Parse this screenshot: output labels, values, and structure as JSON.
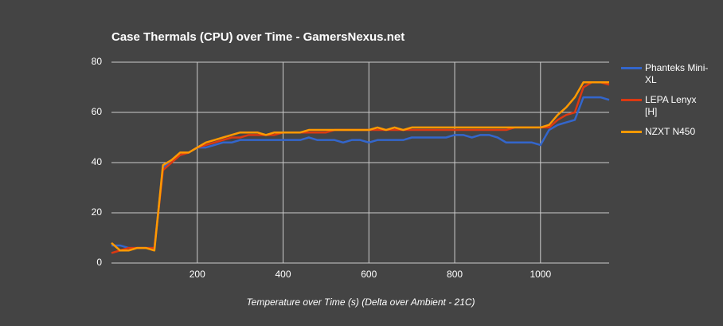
{
  "chart_data": {
    "type": "line",
    "title": "Case Thermals (CPU) over Time - GamersNexus.net",
    "x_label": "Temperature over Time (s) (Delta over Ambient - 21C)",
    "x": [
      0,
      20,
      40,
      60,
      80,
      100,
      120,
      140,
      160,
      180,
      200,
      220,
      240,
      260,
      280,
      300,
      320,
      340,
      360,
      380,
      400,
      420,
      440,
      460,
      480,
      500,
      520,
      540,
      560,
      580,
      600,
      620,
      640,
      660,
      680,
      700,
      720,
      740,
      760,
      780,
      800,
      820,
      840,
      860,
      880,
      900,
      920,
      940,
      960,
      980,
      1000,
      1020,
      1040,
      1060,
      1080,
      1100,
      1120,
      1140,
      1160
    ],
    "series": [
      {
        "name": "Phanteks Mini-XL",
        "color": "#3366cc",
        "values": [
          7,
          7,
          6,
          6,
          6,
          6,
          38,
          41,
          43,
          44,
          46,
          46,
          47,
          48,
          48,
          49,
          49,
          49,
          49,
          49,
          49,
          49,
          49,
          50,
          49,
          49,
          49,
          48,
          49,
          49,
          48,
          49,
          49,
          49,
          49,
          50,
          50,
          50,
          50,
          50,
          51,
          51,
          50,
          51,
          51,
          50,
          48,
          48,
          48,
          48,
          47,
          53,
          55,
          56,
          57,
          66,
          66,
          66,
          65
        ]
      },
      {
        "name": "LEPA Lenyx [H]",
        "color": "#dc3912",
        "values": [
          4,
          5,
          6,
          6,
          6,
          6,
          37,
          40,
          43,
          44,
          46,
          47,
          48,
          49,
          50,
          50,
          51,
          51,
          51,
          51,
          52,
          52,
          52,
          52,
          52,
          52,
          53,
          53,
          53,
          53,
          53,
          53,
          53,
          53,
          53,
          53,
          53,
          53,
          53,
          53,
          53,
          53,
          53,
          53,
          53,
          53,
          53,
          54,
          54,
          54,
          54,
          54,
          57,
          59,
          60,
          70,
          72,
          72,
          71
        ]
      },
      {
        "name": "NZXT N450",
        "color": "#ff9900",
        "values": [
          8,
          5,
          5,
          6,
          6,
          5,
          39,
          41,
          44,
          44,
          46,
          48,
          49,
          50,
          51,
          52,
          52,
          52,
          51,
          52,
          52,
          52,
          52,
          53,
          53,
          53,
          53,
          53,
          53,
          53,
          53,
          54,
          53,
          54,
          53,
          54,
          54,
          54,
          54,
          54,
          54,
          54,
          54,
          54,
          54,
          54,
          54,
          54,
          54,
          54,
          54,
          55,
          59,
          62,
          66,
          72,
          72,
          72,
          72
        ]
      }
    ],
    "xlim": [
      0,
      1160
    ],
    "ylim": [
      0,
      80
    ],
    "xticks": [
      200,
      400,
      600,
      800,
      1000
    ],
    "yticks": [
      0,
      20,
      40,
      60,
      80
    ],
    "grid": true
  }
}
